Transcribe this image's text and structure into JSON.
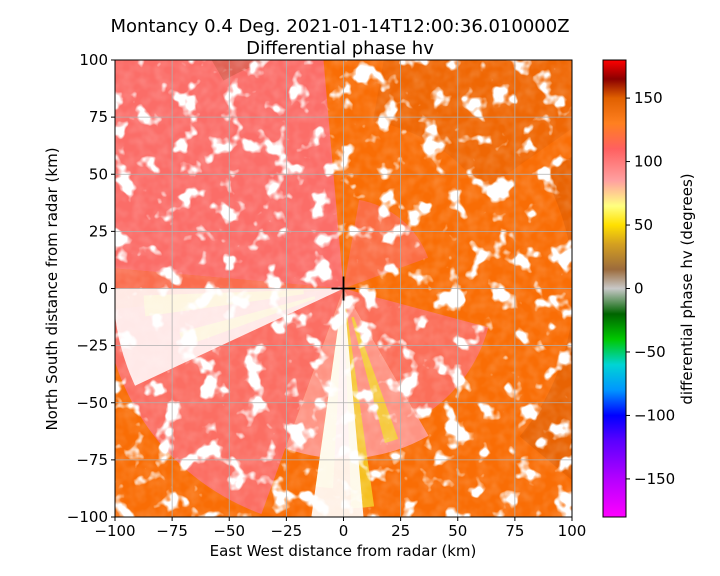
{
  "chart_data": {
    "type": "heatmap",
    "title": [
      "Montancy 0.4 Deg. 2021-01-14T12:00:36.010000Z",
      "Differential phase hv"
    ],
    "xlabel": "East West distance from radar (km)",
    "ylabel": "North South distance from radar (km)",
    "xlim": [
      -100,
      100
    ],
    "ylim": [
      -100,
      100
    ],
    "xticks": [
      -100,
      -75,
      -50,
      -25,
      0,
      25,
      50,
      75,
      100
    ],
    "yticks": [
      -100,
      -75,
      -50,
      -25,
      0,
      25,
      50,
      75,
      100
    ],
    "xtick_labels": [
      "−100",
      "−75",
      "−50",
      "−25",
      "0",
      "25",
      "50",
      "75",
      "100"
    ],
    "ytick_labels": [
      "−100",
      "−75",
      "−50",
      "−25",
      "0",
      "25",
      "50",
      "75",
      "100"
    ],
    "grid": true,
    "radar_marker": {
      "x": 0,
      "y": 0,
      "symbol": "+"
    },
    "colorbar": {
      "label": "differential phase hv (degrees)",
      "range": [
        -180,
        180
      ],
      "ticks": [
        150,
        100,
        50,
        0,
        -50,
        -100,
        -150
      ],
      "tick_labels": [
        "150",
        "100",
        "50",
        "0",
        "−50",
        "−100",
        "−150"
      ],
      "colormap_stops": [
        {
          "value": -180,
          "color": "#ff00ff"
        },
        {
          "value": -150,
          "color": "#b400ff"
        },
        {
          "value": -120,
          "color": "#5a00ff"
        },
        {
          "value": -100,
          "color": "#0000ff"
        },
        {
          "value": -80,
          "color": "#0096ff"
        },
        {
          "value": -60,
          "color": "#00d4d4"
        },
        {
          "value": -40,
          "color": "#00c800"
        },
        {
          "value": -20,
          "color": "#006400"
        },
        {
          "value": 0,
          "color": "#c8c8c8"
        },
        {
          "value": 15,
          "color": "#9c6b3c"
        },
        {
          "value": 35,
          "color": "#d4a020"
        },
        {
          "value": 50,
          "color": "#ffe000"
        },
        {
          "value": 65,
          "color": "#ffff80"
        },
        {
          "value": 85,
          "color": "#ffa0a0"
        },
        {
          "value": 110,
          "color": "#ff6060"
        },
        {
          "value": 130,
          "color": "#ff8020"
        },
        {
          "value": 150,
          "color": "#e06000"
        },
        {
          "value": 165,
          "color": "#8b0000"
        },
        {
          "value": 180,
          "color": "#ff0000"
        }
      ]
    },
    "field_colors": {
      "dominant": "#f96d05",
      "dark": "#c94f00",
      "pink": "#fb6e6e",
      "lightpink": "#ff9a9a",
      "yellow": "#f3dc2a",
      "brown": "#8b3a14",
      "nodata": "#ffffff"
    }
  }
}
